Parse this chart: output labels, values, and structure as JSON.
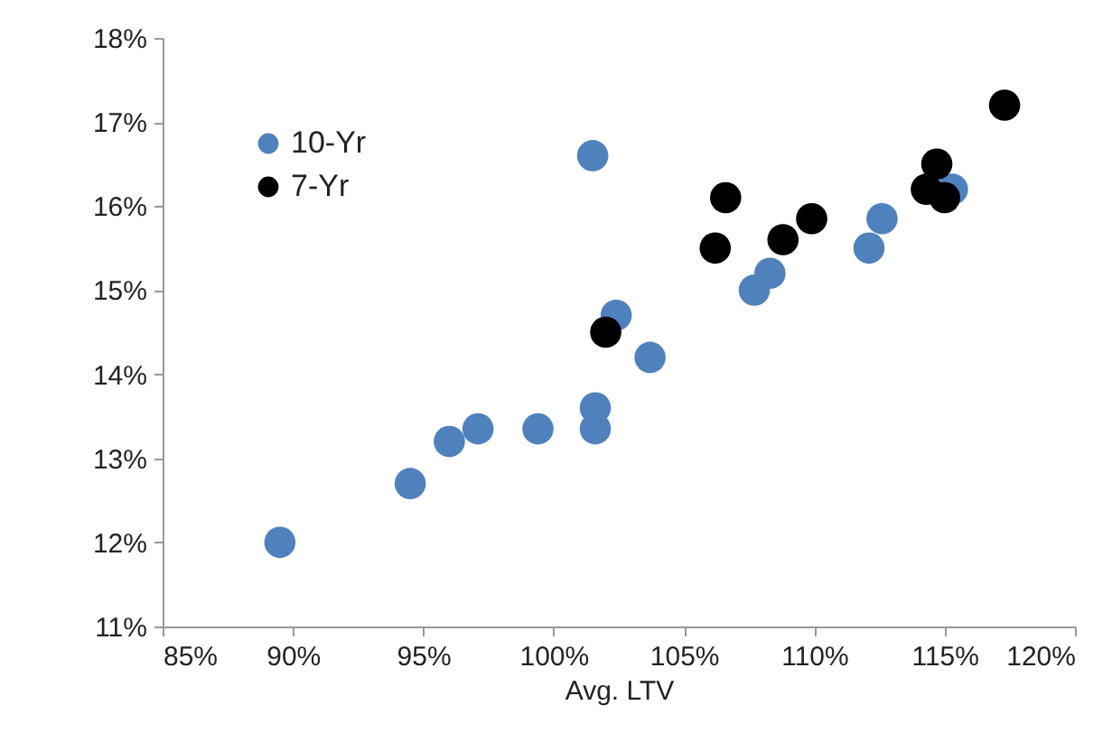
{
  "chart_data": {
    "type": "scatter",
    "xlabel": "Avg. LTV",
    "xlim": [
      85,
      120
    ],
    "xticks": [
      {
        "value": 85,
        "label": "85%"
      },
      {
        "value": 90,
        "label": "90%"
      },
      {
        "value": 95,
        "label": "95%"
      },
      {
        "value": 100,
        "label": "100%"
      },
      {
        "value": 105,
        "label": "105%"
      },
      {
        "value": 110,
        "label": "110%"
      },
      {
        "value": 115,
        "label": "115%"
      },
      {
        "value": 120,
        "label": "120%"
      }
    ],
    "ylim": [
      11,
      18
    ],
    "yticks": [
      {
        "value": 11,
        "label": "11%"
      },
      {
        "value": 12,
        "label": "12%"
      },
      {
        "value": 13,
        "label": "13%"
      },
      {
        "value": 14,
        "label": "14%"
      },
      {
        "value": 15,
        "label": "15%"
      },
      {
        "value": 16,
        "label": "16%"
      },
      {
        "value": 17,
        "label": "17%"
      },
      {
        "value": 18,
        "label": "18%"
      }
    ],
    "grid": false,
    "legend": "top left",
    "marker": "circle",
    "series": [
      {
        "name": "10-Yr",
        "color": "#4f81bd",
        "x": [
          89.5,
          94.5,
          96.0,
          97.1,
          99.4,
          101.6,
          101.6,
          101.5,
          102.4,
          103.7,
          107.7,
          108.3,
          112.1,
          112.6,
          115.3
        ],
        "values": [
          12.0,
          12.7,
          13.2,
          13.35,
          13.35,
          13.35,
          13.6,
          16.6,
          14.7,
          14.2,
          15.0,
          15.2,
          15.5,
          15.85,
          16.2
        ]
      },
      {
        "name": "7-Yr",
        "color": "#000000",
        "x": [
          102.0,
          106.2,
          106.6,
          108.8,
          109.9,
          114.3,
          114.7,
          115.0,
          117.3
        ],
        "values": [
          14.5,
          15.5,
          16.1,
          15.6,
          15.85,
          16.2,
          16.5,
          16.1,
          17.2
        ]
      }
    ]
  }
}
